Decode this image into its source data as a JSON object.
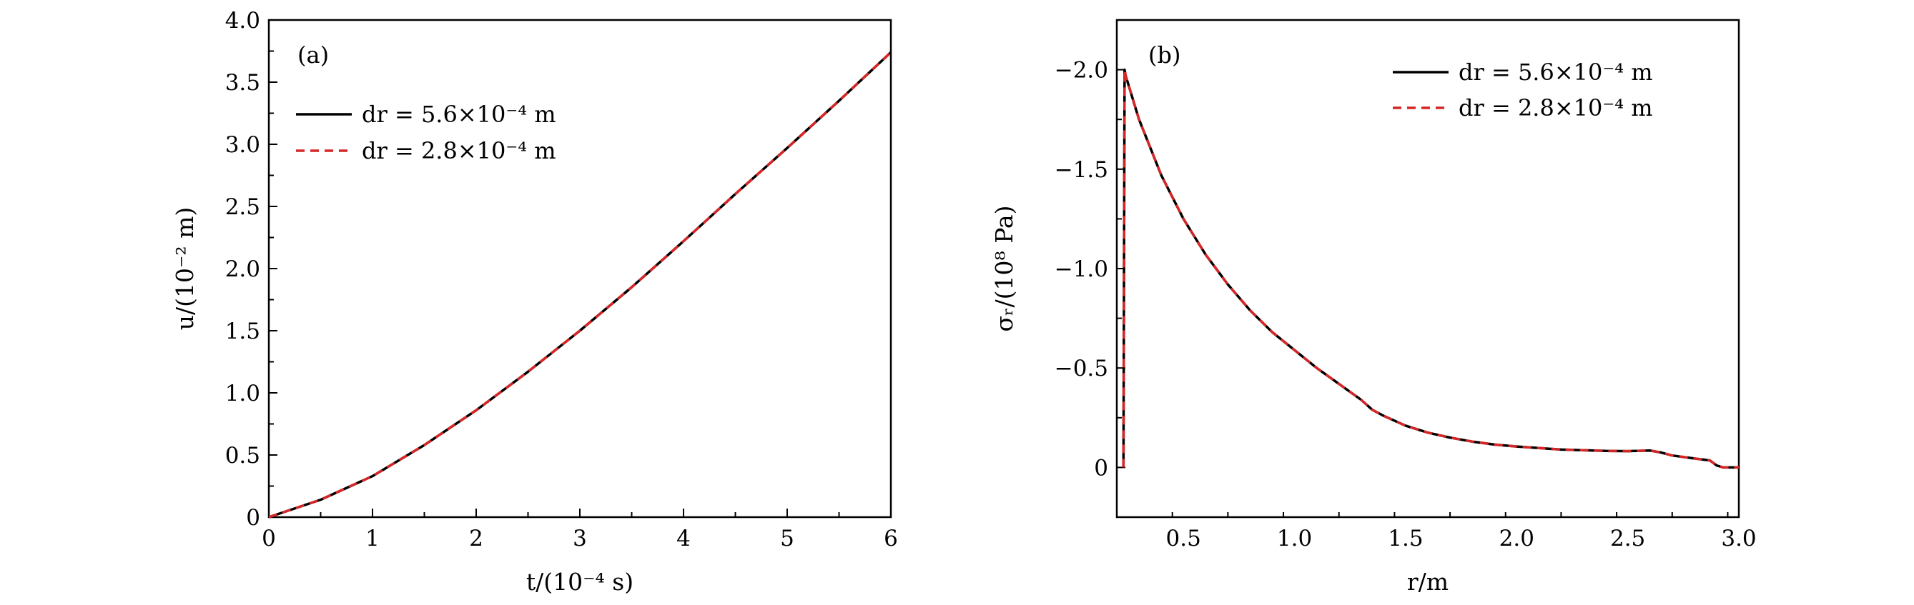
{
  "chart_data": [
    {
      "type": "line",
      "panel_label": "(a)",
      "xlabel": "t/(10⁻⁴ s)",
      "ylabel": "u/(10⁻² m)",
      "xlim": [
        0,
        6
      ],
      "ylim": [
        0,
        4.0
      ],
      "xticks": [
        "0",
        "1",
        "2",
        "3",
        "4",
        "5",
        "6"
      ],
      "yticks": [
        "0",
        "0.5",
        "1.0",
        "1.5",
        "2.0",
        "2.5",
        "3.0",
        "3.5",
        "4.0"
      ],
      "grid": false,
      "legend_position": "upper-left",
      "series": [
        {
          "name": "dr = 5.6×10⁻⁴ m",
          "color": "#000000",
          "style": "solid",
          "x": [
            0,
            0.5,
            1,
            1.5,
            2,
            2.5,
            3,
            3.5,
            4,
            4.5,
            5,
            5.5,
            6
          ],
          "y": [
            0,
            0.14,
            0.33,
            0.58,
            0.86,
            1.17,
            1.5,
            1.85,
            2.22,
            2.6,
            2.97,
            3.35,
            3.74
          ]
        },
        {
          "name": "dr = 2.8×10⁻⁴ m",
          "color": "#d62728",
          "style": "dashed",
          "x": [
            0,
            0.5,
            1,
            1.5,
            2,
            2.5,
            3,
            3.5,
            4,
            4.5,
            5,
            5.5,
            6
          ],
          "y": [
            0,
            0.14,
            0.33,
            0.58,
            0.86,
            1.17,
            1.5,
            1.85,
            2.22,
            2.6,
            2.97,
            3.35,
            3.74
          ]
        }
      ]
    },
    {
      "type": "line",
      "panel_label": "(b)",
      "xlabel": "r/m",
      "ylabel": "σᵣ/(10⁸ Pa)",
      "xlim": [
        0.2,
        3.0
      ],
      "ylim": [
        0.25,
        -2.25
      ],
      "y_axis_inverted": true,
      "xticks": [
        "0.5",
        "1.0",
        "1.5",
        "2.0",
        "2.5",
        "3.0"
      ],
      "yticks": [
        "0",
        "−0.5",
        "−1.0",
        "−1.5",
        "−2.0"
      ],
      "grid": false,
      "legend_position": "upper-right",
      "series": [
        {
          "name": "dr = 5.6×10⁻⁴ m",
          "color": "#000000",
          "style": "solid",
          "x": [
            0.23,
            0.235,
            0.24,
            0.3,
            0.4,
            0.5,
            0.6,
            0.7,
            0.8,
            0.9,
            1.0,
            1.1,
            1.2,
            1.3,
            1.35,
            1.4,
            1.5,
            1.6,
            1.7,
            1.8,
            1.9,
            2.0,
            2.2,
            2.4,
            2.5,
            2.6,
            2.65,
            2.7,
            2.8,
            2.87,
            2.9,
            2.93,
            3.0
          ],
          "y": [
            0,
            -2.0,
            -1.97,
            -1.75,
            -1.47,
            -1.25,
            -1.07,
            -0.92,
            -0.79,
            -0.68,
            -0.59,
            -0.5,
            -0.42,
            -0.34,
            -0.29,
            -0.26,
            -0.21,
            -0.175,
            -0.15,
            -0.13,
            -0.115,
            -0.105,
            -0.09,
            -0.083,
            -0.082,
            -0.085,
            -0.075,
            -0.06,
            -0.045,
            -0.035,
            -0.01,
            0,
            0
          ]
        },
        {
          "name": "dr = 2.8×10⁻⁴ m",
          "color": "#d62728",
          "style": "dashed",
          "x": [
            0.23,
            0.235,
            0.24,
            0.3,
            0.4,
            0.5,
            0.6,
            0.7,
            0.8,
            0.9,
            1.0,
            1.1,
            1.2,
            1.3,
            1.35,
            1.4,
            1.5,
            1.6,
            1.7,
            1.8,
            1.9,
            2.0,
            2.2,
            2.4,
            2.5,
            2.6,
            2.65,
            2.7,
            2.8,
            2.87,
            2.9,
            2.93,
            3.0
          ],
          "y": [
            0,
            -2.0,
            -1.97,
            -1.75,
            -1.47,
            -1.25,
            -1.07,
            -0.92,
            -0.79,
            -0.68,
            -0.59,
            -0.5,
            -0.42,
            -0.34,
            -0.29,
            -0.26,
            -0.21,
            -0.175,
            -0.15,
            -0.13,
            -0.115,
            -0.105,
            -0.09,
            -0.083,
            -0.082,
            -0.085,
            -0.075,
            -0.06,
            -0.045,
            -0.035,
            -0.01,
            0,
            0
          ]
        }
      ]
    }
  ]
}
